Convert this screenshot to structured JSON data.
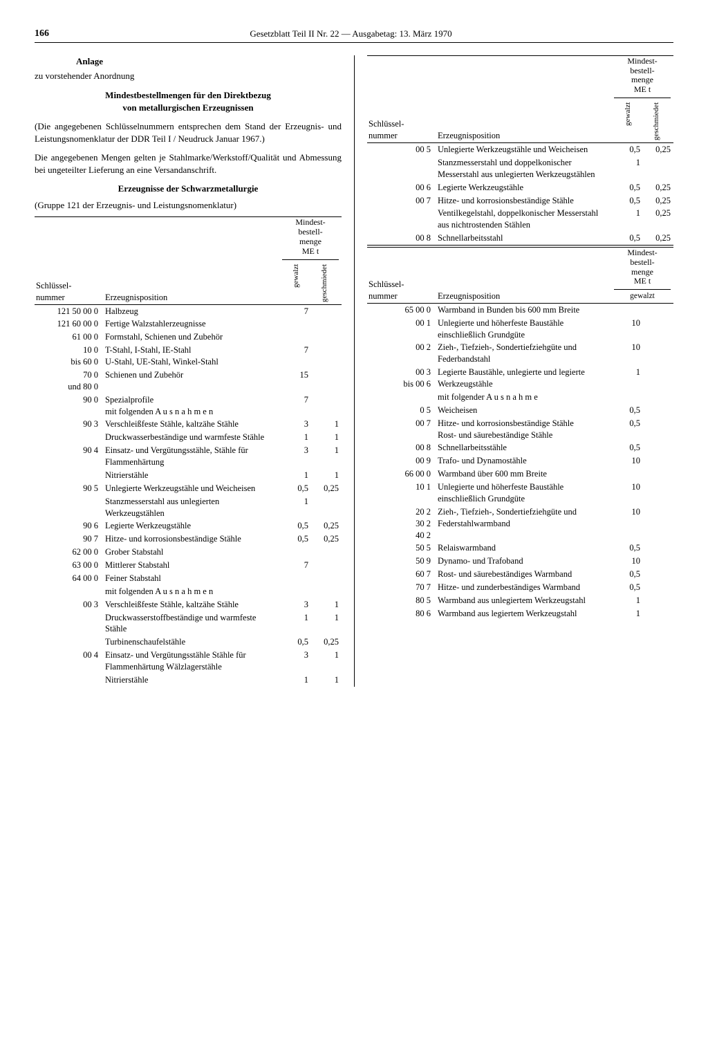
{
  "page_number": "166",
  "header": "Gesetzblatt Teil II Nr. 22 — Ausgabetag: 13. März 1970",
  "anlage": "Anlage",
  "zu": "zu vorstehender Anordnung",
  "title1": "Mindestbestellmengen für den Direktbezug",
  "title2": "von metallurgischen Erzeugnissen",
  "para1": "(Die angegebenen Schlüsselnummern entsprechen dem Stand der Erzeugnis- und Leistungsnomenklatur der DDR Teil I / Neudruck Januar 1967.)",
  "para2": "Die angegebenen Mengen gelten je Stahlmarke/Werkstoff/Qualität und Abmessung bei ungeteilter Lieferung an eine Versandanschrift.",
  "subtitle": "Erzeugnisse der Schwarzmetallurgie",
  "gruppe": "(Gruppe 121 der Erzeugnis- und Leistungsnomenklatur)",
  "th": {
    "key": "Schlüssel-\nnummer",
    "pos": "Erzeugnisposition",
    "mind": "Mindest-\nbestell-\nmenge\nME    t",
    "gewalzt": "gewalzt",
    "geschm": "geschmiedet"
  },
  "left_rows": [
    {
      "k": "121 50 00 0",
      "d": "Halbzeug",
      "v1": "7",
      "v2": ""
    },
    {
      "k": "121 60 00 0",
      "d": "Fertige Walzstahlerzeugnisse",
      "v1": "",
      "v2": ""
    },
    {
      "k": "61 00 0",
      "d": "Formstahl, Schienen und Zubehör",
      "v1": "",
      "v2": ""
    },
    {
      "k": "10 0\nbis 60 0",
      "d": "T-Stahl, I-Stahl, IE-Stahl\nU-Stahl, UE-Stahl, Winkel-Stahl",
      "v1": "7",
      "v2": ""
    },
    {
      "k": "70 0\nund 80 0",
      "d": "Schienen und Zubehör",
      "v1": "15",
      "v2": ""
    },
    {
      "k": "90 0",
      "d": "Spezialprofile\nmit folgenden A u s n a h m e n",
      "v1": "7",
      "v2": ""
    },
    {
      "k": "90 3",
      "d": "Verschleißfeste Stähle, kaltzähe Stähle",
      "v1": "3",
      "v2": "1"
    },
    {
      "k": "",
      "d": "Druckwasserbeständige und warmfeste Stähle",
      "v1": "1",
      "v2": "1"
    },
    {
      "k": "90 4",
      "d": "Einsatz- und Vergütungsstähle, Stähle für Flammenhärtung",
      "v1": "3",
      "v2": "1"
    },
    {
      "k": "",
      "d": "Nitrierstähle",
      "v1": "1",
      "v2": "1"
    },
    {
      "k": "90 5",
      "d": "Unlegierte Werkzeugstähle und Weicheisen",
      "v1": "0,5",
      "v2": "0,25"
    },
    {
      "k": "",
      "d": "Stanzmesserstahl aus unlegierten Werkzeugstählen",
      "v1": "1",
      "v2": ""
    },
    {
      "k": "90 6",
      "d": "Legierte Werkzeugstähle",
      "v1": "0,5",
      "v2": "0,25"
    },
    {
      "k": "90 7",
      "d": "Hitze- und korrosionsbeständige Stähle",
      "v1": "0,5",
      "v2": "0,25"
    },
    {
      "k": "62 00 0",
      "d": "Grober Stabstahl",
      "v1": "",
      "v2": "",
      "brace": "top"
    },
    {
      "k": "63 00 0",
      "d": "Mittlerer Stabstahl",
      "v1": "7",
      "v2": "",
      "brace": "mid"
    },
    {
      "k": "64 00 0",
      "d": "Feiner Stabstahl",
      "v1": "",
      "v2": "",
      "brace": "bot"
    },
    {
      "k": "",
      "d": "mit folgenden A u s n a h m e n",
      "v1": "",
      "v2": ""
    },
    {
      "k": "00 3",
      "d": "Verschleißfeste Stähle, kaltzähe Stähle",
      "v1": "3",
      "v2": "1"
    },
    {
      "k": "",
      "d": "Druckwasserstoffbeständige und warmfeste Stähle",
      "v1": "1",
      "v2": "1"
    },
    {
      "k": "",
      "d": "Turbinenschaufelstähle",
      "v1": "0,5",
      "v2": "0,25"
    },
    {
      "k": "00 4",
      "d": "Einsatz- und Vergütungsstähle Stähle für Flammenhärtung Wälzlagerstähle",
      "v1": "3",
      "v2": "1"
    },
    {
      "k": "",
      "d": "Nitrierstähle",
      "v1": "1",
      "v2": "1"
    }
  ],
  "right_rows_a": [
    {
      "k": "00 5",
      "d": "Unlegierte Werkzeugstähle und Weicheisen",
      "v1": "0,5",
      "v2": "0,25"
    },
    {
      "k": "",
      "d": "Stanzmesserstahl und doppelkonischer Messerstahl aus unlegierten Werkzeugstählen",
      "v1": "1",
      "v2": ""
    },
    {
      "k": "00 6",
      "d": "Legierte Werkzeugstähle",
      "v1": "0,5",
      "v2": "0,25"
    },
    {
      "k": "00 7",
      "d": "Hitze- und korrosionsbeständige Stähle",
      "v1": "0,5",
      "v2": "0,25"
    },
    {
      "k": "",
      "d": "Ventilkegelstahl, doppelkonischer Messerstahl aus nichtrostenden Stählen",
      "v1": "1",
      "v2": "0,25"
    },
    {
      "k": "00 8",
      "d": "Schnellarbeitsstahl",
      "v1": "0,5",
      "v2": "0,25"
    }
  ],
  "right_header2_note": "gewalzt",
  "right_rows_b": [
    {
      "k": "65 00 0",
      "d": "Warmband in Bunden bis 600 mm Breite",
      "v1": ""
    },
    {
      "k": "00 1",
      "d": "Unlegierte und höherfeste Baustähle einschließlich Grundgüte",
      "v1": "10"
    },
    {
      "k": "00 2",
      "d": "Zieh-, Tiefzieh-, Sondertiefziehgüte und Federbandstahl",
      "v1": "10"
    },
    {
      "k": "00 3\nbis   00 6",
      "d": "Legierte Baustähle, unlegierte und legierte Werkzeugstähle",
      "v1": "1"
    },
    {
      "k": "",
      "d": "mit folgender A u s n a h m e",
      "v1": ""
    },
    {
      "k": "0 5",
      "d": "Weicheisen",
      "v1": "0,5"
    },
    {
      "k": "00 7",
      "d": "Hitze- und korrosionsbeständige Stähle\nRost- und säurebeständige Stähle",
      "v1": "0,5"
    },
    {
      "k": "00 8",
      "d": "Schnellarbeitsstähle",
      "v1": "0,5"
    },
    {
      "k": "00 9",
      "d": "Trafo- und Dynamostähle",
      "v1": "10"
    },
    {
      "k": "66 00 0",
      "d": "Warmband über 600 mm Breite",
      "v1": ""
    },
    {
      "k": "10 1",
      "d": "Unlegierte und höherfeste Baustähle einschließlich Grundgüte",
      "v1": "10"
    },
    {
      "k": "20 2\n30 2\n40 2",
      "d": "Zieh-, Tiefzieh-, Sondertiefziehgüte und Federstahlwarmband",
      "v1": "10"
    },
    {
      "k": "50 5",
      "d": "Relaiswarmband",
      "v1": "0,5"
    },
    {
      "k": "50 9",
      "d": "Dynamo- und Trafoband",
      "v1": "10"
    },
    {
      "k": "60 7",
      "d": "Rost- und säurebeständiges Warmband",
      "v1": "0,5"
    },
    {
      "k": "70 7",
      "d": "Hitze- und zunderbeständiges Warmband",
      "v1": "0,5"
    },
    {
      "k": "80 5",
      "d": "Warmband aus unlegiertem Werkzeugstahl",
      "v1": "1"
    },
    {
      "k": "80 6",
      "d": "Warmband aus legiertem Werkzeugstahl",
      "v1": "1"
    }
  ]
}
